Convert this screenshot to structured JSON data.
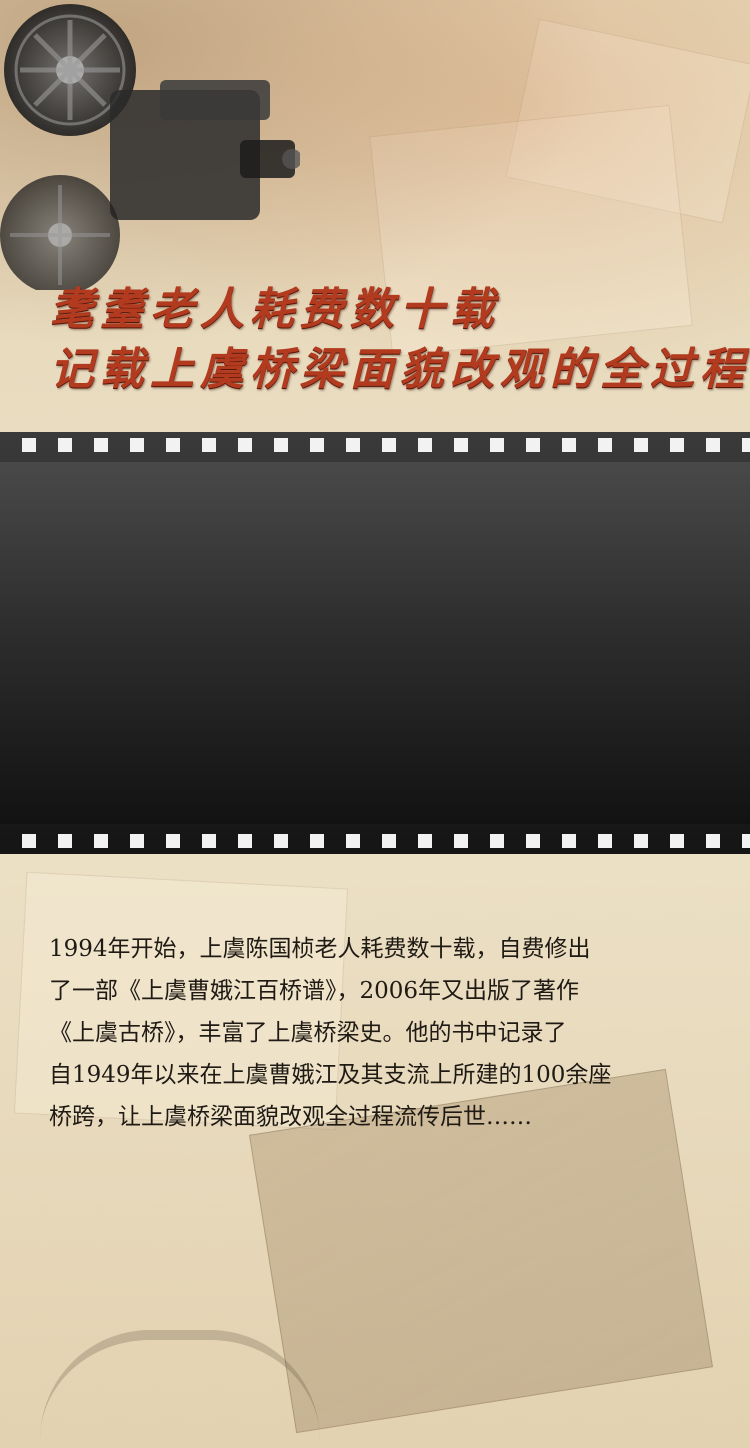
{
  "title": {
    "line1": "耄耋老人耗费数十载",
    "line2": "记载上虞桥梁面貌改观的全过程"
  },
  "body": {
    "lines": [
      "1994年开始，上虞陈国桢老人耗费数十载，自费修出",
      "了一部《上虞曹娥江百桥谱》，2006年又出版了著作",
      "《上虞古桥》，丰富了上虞桥梁史。他的书中记录了",
      "自1949年以来在上虞曹娥江及其支流上所建的100余座",
      "桥跨，让上虞桥梁面貌改观全过程流传后世……"
    ]
  },
  "colors": {
    "title": "#b23a1f",
    "film": "#2b2b2b",
    "background": "#e9dcc0",
    "text": "#1f1a14"
  },
  "icons": {
    "projector": "film-projector-icon"
  }
}
